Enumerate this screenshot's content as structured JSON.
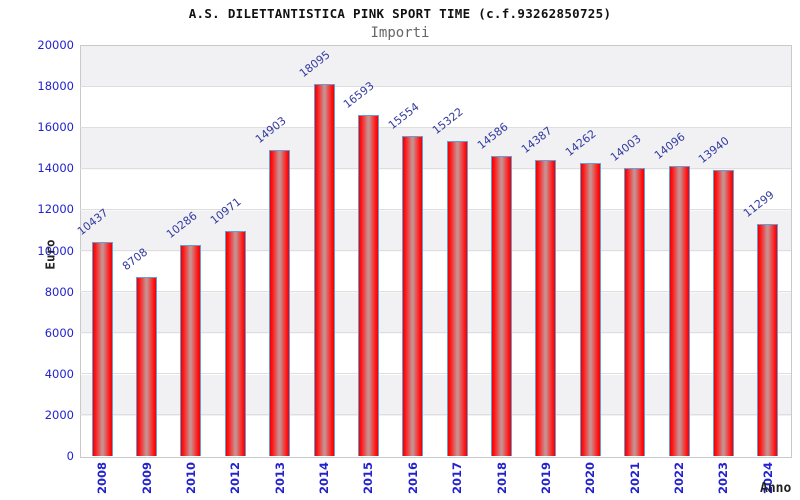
{
  "header": {
    "title": "A.S. DILETTANTISTICA PINK SPORT TIME (c.f.93262850725)",
    "subtitle": "Importi"
  },
  "chart_data": {
    "type": "bar",
    "title": "A.S. DILETTANTISTICA PINK SPORT TIME (c.f.93262850725)",
    "subtitle": "Importi",
    "xlabel": "Anno",
    "ylabel": "Euro",
    "categories": [
      "2008",
      "2009",
      "2010",
      "2012",
      "2013",
      "2014",
      "2015",
      "2016",
      "2017",
      "2018",
      "2019",
      "2020",
      "2021",
      "2022",
      "2023",
      "2024"
    ],
    "values": [
      10437,
      8708,
      10286,
      10971,
      14903,
      18095,
      16593,
      15554,
      15322,
      14586,
      14387,
      14262,
      14003,
      14096,
      13940,
      11299
    ],
    "ylim": [
      0,
      20000
    ],
    "yticks": [
      0,
      2000,
      4000,
      6000,
      8000,
      10000,
      12000,
      14000,
      16000,
      18000,
      20000
    ],
    "grid": "horizontal lines with alternating gray/white bands",
    "legend": "none",
    "value_labels": "rotated above bars",
    "colors": {
      "bar_edge_red": "#ee0202",
      "bar_mid_red": "#c98e8e",
      "bar_border_blue": "#64a0d8",
      "tick_label_blue": "#2323cd",
      "value_label_navy": "#333a9e",
      "band_gray": "#f1f1f3",
      "gridline_gray": "#dededf",
      "title_black": "#111111",
      "subtitle_gray": "#666666"
    }
  }
}
